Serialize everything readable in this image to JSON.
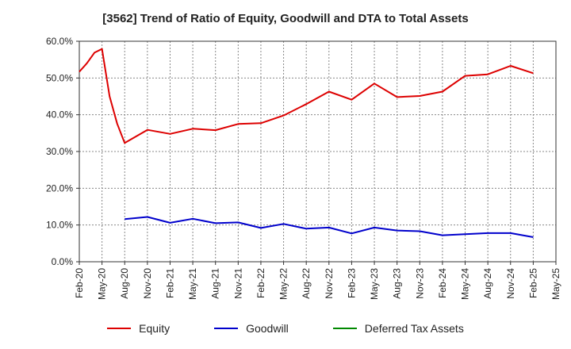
{
  "chart_data": {
    "type": "line",
    "title": "[3562]  Trend of Ratio of Equity, Goodwill and DTA to Total Assets",
    "xlabel": "",
    "ylabel": "",
    "ylim": [
      0,
      60
    ],
    "yticks": [
      "0.0%",
      "10.0%",
      "20.0%",
      "30.0%",
      "40.0%",
      "50.0%",
      "60.0%"
    ],
    "categories": [
      "Feb-20",
      "Mar-20",
      "Apr-20",
      "May-20",
      "Jun-20",
      "Jul-20",
      "Aug-20",
      "Sep-20",
      "Oct-20",
      "Nov-20",
      "Dec-20",
      "Jan-21",
      "Feb-21",
      "Mar-21",
      "Apr-21",
      "May-21",
      "Jun-21",
      "Jul-21",
      "Aug-21",
      "Sep-21",
      "Oct-21",
      "Nov-21",
      "Dec-21",
      "Jan-22",
      "Feb-22",
      "Mar-22",
      "Apr-22",
      "May-22",
      "Jun-22",
      "Jul-22",
      "Aug-22",
      "Sep-22",
      "Oct-22",
      "Nov-22",
      "Dec-22",
      "Jan-23",
      "Feb-23",
      "Mar-23",
      "Apr-23",
      "May-23",
      "Jun-23",
      "Jul-23",
      "Aug-23",
      "Sep-23",
      "Oct-23",
      "Nov-23",
      "Dec-23",
      "Jan-24",
      "Feb-24",
      "Mar-24",
      "Apr-24",
      "May-24",
      "Jun-24",
      "Jul-24",
      "Aug-24",
      "Sep-24",
      "Oct-24",
      "Nov-24",
      "Dec-24",
      "Jan-25",
      "Feb-25",
      "Mar-25",
      "Apr-25",
      "May-25"
    ],
    "xtick_labels": [
      "Feb-20",
      "May-20",
      "Aug-20",
      "Nov-20",
      "Feb-21",
      "May-21",
      "Aug-21",
      "Nov-21",
      "Feb-22",
      "May-22",
      "Aug-22",
      "Nov-22",
      "Feb-23",
      "May-23",
      "Aug-23",
      "Nov-23",
      "Feb-24",
      "May-24",
      "Aug-24",
      "Nov-24",
      "Feb-25",
      "May-25"
    ],
    "series": [
      {
        "name": "Equity",
        "color": "#dd0000",
        "points": [
          {
            "x": "Feb-20",
            "y": 51.7
          },
          {
            "x": "Mar-20",
            "y": 54.0
          },
          {
            "x": "Apr-20",
            "y": 56.9
          },
          {
            "x": "May-20",
            "y": 57.9
          },
          {
            "x": "Jun-20",
            "y": 45.0
          },
          {
            "x": "Jul-20",
            "y": 37.6
          },
          {
            "x": "Aug-20",
            "y": 32.3
          },
          {
            "x": "Nov-20",
            "y": 35.9
          },
          {
            "x": "Feb-21",
            "y": 34.8
          },
          {
            "x": "May-21",
            "y": 36.2
          },
          {
            "x": "Aug-21",
            "y": 35.8
          },
          {
            "x": "Nov-21",
            "y": 37.5
          },
          {
            "x": "Feb-22",
            "y": 37.7
          },
          {
            "x": "May-22",
            "y": 39.8
          },
          {
            "x": "Aug-22",
            "y": 42.9
          },
          {
            "x": "Nov-22",
            "y": 46.3
          },
          {
            "x": "Feb-23",
            "y": 44.1
          },
          {
            "x": "May-23",
            "y": 48.5
          },
          {
            "x": "Aug-23",
            "y": 44.8
          },
          {
            "x": "Nov-23",
            "y": 45.1
          },
          {
            "x": "Feb-24",
            "y": 46.3
          },
          {
            "x": "May-24",
            "y": 50.6
          },
          {
            "x": "Aug-24",
            "y": 51.0
          },
          {
            "x": "Nov-24",
            "y": 53.3
          },
          {
            "x": "Feb-25",
            "y": 51.3
          }
        ]
      },
      {
        "name": "Goodwill",
        "color": "#0000cc",
        "points": [
          {
            "x": "Aug-20",
            "y": 11.6
          },
          {
            "x": "Nov-20",
            "y": 12.2
          },
          {
            "x": "Feb-21",
            "y": 10.6
          },
          {
            "x": "May-21",
            "y": 11.7
          },
          {
            "x": "Aug-21",
            "y": 10.5
          },
          {
            "x": "Nov-21",
            "y": 10.7
          },
          {
            "x": "Feb-22",
            "y": 9.2
          },
          {
            "x": "May-22",
            "y": 10.3
          },
          {
            "x": "Aug-22",
            "y": 9.0
          },
          {
            "x": "Nov-22",
            "y": 9.3
          },
          {
            "x": "Feb-23",
            "y": 7.7
          },
          {
            "x": "May-23",
            "y": 9.3
          },
          {
            "x": "Aug-23",
            "y": 8.5
          },
          {
            "x": "Nov-23",
            "y": 8.3
          },
          {
            "x": "Feb-24",
            "y": 7.2
          },
          {
            "x": "May-24",
            "y": 7.5
          },
          {
            "x": "Aug-24",
            "y": 7.8
          },
          {
            "x": "Nov-24",
            "y": 7.8
          },
          {
            "x": "Feb-25",
            "y": 6.7
          }
        ]
      },
      {
        "name": "Deferred Tax Assets",
        "color": "#008800",
        "points": []
      }
    ],
    "grid": true,
    "legend_position": "bottom"
  }
}
